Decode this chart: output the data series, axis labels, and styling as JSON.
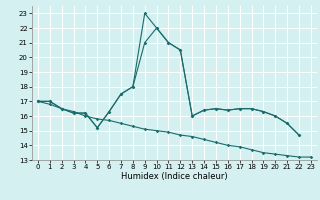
{
  "title": "",
  "xlabel": "Humidex (Indice chaleur)",
  "bg_color": "#d4f0f0",
  "grid_color": "#ffffff",
  "line_color": "#1a6b6b",
  "xlim": [
    -0.5,
    23.5
  ],
  "ylim": [
    13,
    23.5
  ],
  "yticks": [
    13,
    14,
    15,
    16,
    17,
    18,
    19,
    20,
    21,
    22,
    23
  ],
  "xticks": [
    0,
    1,
    2,
    3,
    4,
    5,
    6,
    7,
    8,
    9,
    10,
    11,
    12,
    13,
    14,
    15,
    16,
    17,
    18,
    19,
    20,
    21,
    22,
    23
  ],
  "line1_x": [
    0,
    1,
    2,
    3,
    4,
    5,
    6,
    7,
    8,
    9,
    10,
    11,
    12,
    13,
    14,
    15,
    16,
    17,
    18,
    19,
    20,
    21,
    22
  ],
  "line1_y": [
    17.0,
    17.0,
    16.5,
    16.2,
    16.2,
    15.2,
    16.3,
    17.5,
    18.0,
    21.0,
    22.0,
    21.0,
    20.5,
    16.0,
    16.4,
    16.5,
    16.4,
    16.5,
    16.5,
    16.3,
    16.0,
    15.5,
    14.7
  ],
  "line2_x": [
    0,
    1,
    2,
    3,
    4,
    5,
    6,
    7,
    8,
    9,
    10,
    11,
    12,
    13,
    14,
    15,
    16,
    17,
    18,
    19,
    20,
    21,
    22
  ],
  "line2_y": [
    17.0,
    17.0,
    16.5,
    16.2,
    16.2,
    15.2,
    16.3,
    17.5,
    18.0,
    23.0,
    22.0,
    21.0,
    20.5,
    16.0,
    16.4,
    16.5,
    16.4,
    16.5,
    16.5,
    16.3,
    16.0,
    15.5,
    14.7
  ],
  "line3_x": [
    0,
    1,
    2,
    3,
    4,
    5,
    6,
    7,
    8,
    9,
    10,
    11,
    12,
    13,
    14,
    15,
    16,
    17,
    18,
    19,
    20,
    21,
    22,
    23
  ],
  "line3_y": [
    17.0,
    16.8,
    16.5,
    16.3,
    16.0,
    15.8,
    15.7,
    15.5,
    15.3,
    15.1,
    15.0,
    14.9,
    14.7,
    14.6,
    14.4,
    14.2,
    14.0,
    13.9,
    13.7,
    13.5,
    13.4,
    13.3,
    13.2,
    13.2
  ],
  "tick_fontsize": 5,
  "xlabel_fontsize": 6
}
